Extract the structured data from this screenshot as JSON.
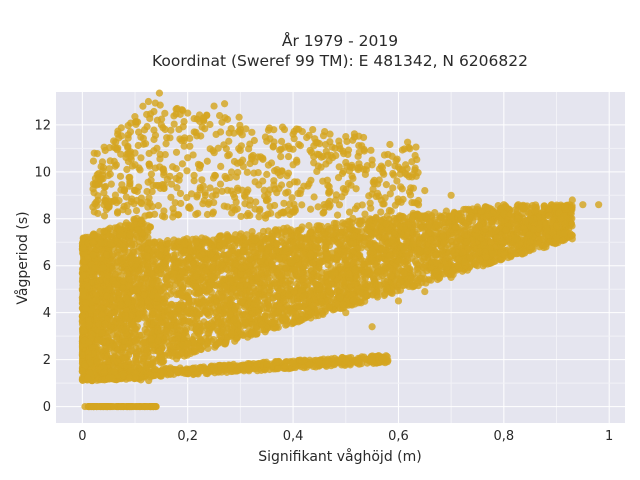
{
  "chart_data": {
    "type": "scatter",
    "title_lines": [
      "År 1979 - 2019",
      "Koordinat (Sweref 99 TM): E 481342, N 6206822"
    ],
    "xlabel": "Signifikant våghöjd (m)",
    "ylabel": "Vågperiod (s)",
    "xlim": [
      -0.05,
      1.03
    ],
    "ylim": [
      -0.7,
      13.4
    ],
    "x_ticks": [
      0,
      0.2,
      0.4,
      0.6,
      0.8,
      1
    ],
    "x_tick_labels": [
      "0",
      "0,2",
      "0,4",
      "0,6",
      "0,8",
      "1"
    ],
    "y_ticks": [
      0,
      2,
      4,
      6,
      8,
      10,
      12
    ],
    "y_tick_labels": [
      "0",
      "2",
      "4",
      "6",
      "8",
      "10",
      "12"
    ],
    "grid": true,
    "background": "#e5e5ef",
    "marker_color": "#d4a520",
    "sample_points": [
      [
        0.005,
        0.0
      ],
      [
        0.03,
        0.0
      ],
      [
        0.06,
        0.0
      ],
      [
        0.09,
        0.0
      ],
      [
        0.12,
        0.0
      ],
      [
        0.14,
        0.0
      ],
      [
        0.0,
        2.2
      ],
      [
        0.0,
        1.5
      ],
      [
        0.01,
        1.2
      ],
      [
        0.05,
        1.2
      ],
      [
        0.1,
        1.2
      ],
      [
        0.15,
        1.3
      ],
      [
        0.2,
        1.4
      ],
      [
        0.25,
        1.6
      ],
      [
        0.3,
        1.7
      ],
      [
        0.35,
        1.8
      ],
      [
        0.4,
        1.85
      ],
      [
        0.45,
        1.9
      ],
      [
        0.5,
        1.95
      ],
      [
        0.55,
        2.0
      ],
      [
        0.57,
        2.05
      ],
      [
        0.02,
        8.5
      ],
      [
        0.05,
        8.6
      ],
      [
        0.08,
        9.2
      ],
      [
        0.1,
        10.3
      ],
      [
        0.12,
        11.2
      ],
      [
        0.15,
        12.0
      ],
      [
        0.18,
        12.7
      ],
      [
        0.2,
        12.5
      ],
      [
        0.23,
        12.3
      ],
      [
        0.25,
        12.8
      ],
      [
        0.27,
        12.9
      ],
      [
        0.3,
        11.8
      ],
      [
        0.35,
        11.3
      ],
      [
        0.4,
        11.6
      ],
      [
        0.45,
        11.2
      ],
      [
        0.5,
        11.5
      ],
      [
        0.55,
        10.5
      ],
      [
        0.6,
        10.2
      ],
      [
        0.65,
        9.2
      ],
      [
        0.7,
        9.0
      ],
      [
        0.75,
        8.5
      ],
      [
        0.8,
        8.6
      ],
      [
        0.85,
        8.0
      ],
      [
        0.9,
        7.7
      ],
      [
        0.93,
        8.8
      ],
      [
        0.95,
        8.6
      ],
      [
        0.98,
        8.6
      ],
      [
        0.1,
        10.8
      ],
      [
        0.2,
        10.6
      ],
      [
        0.3,
        10.4
      ],
      [
        0.4,
        10.3
      ],
      [
        0.5,
        10.4
      ],
      [
        0.55,
        10.3
      ],
      [
        0.3,
        3.2
      ],
      [
        0.4,
        3.6
      ],
      [
        0.5,
        4.0
      ],
      [
        0.55,
        3.4
      ],
      [
        0.6,
        4.5
      ],
      [
        0.65,
        4.9
      ],
      [
        0.7,
        5.5
      ],
      [
        0.75,
        6.0
      ],
      [
        0.8,
        6.5
      ],
      [
        0.85,
        7.0
      ],
      [
        0.88,
        6.8
      ],
      [
        0.9,
        7.2
      ]
    ]
  }
}
